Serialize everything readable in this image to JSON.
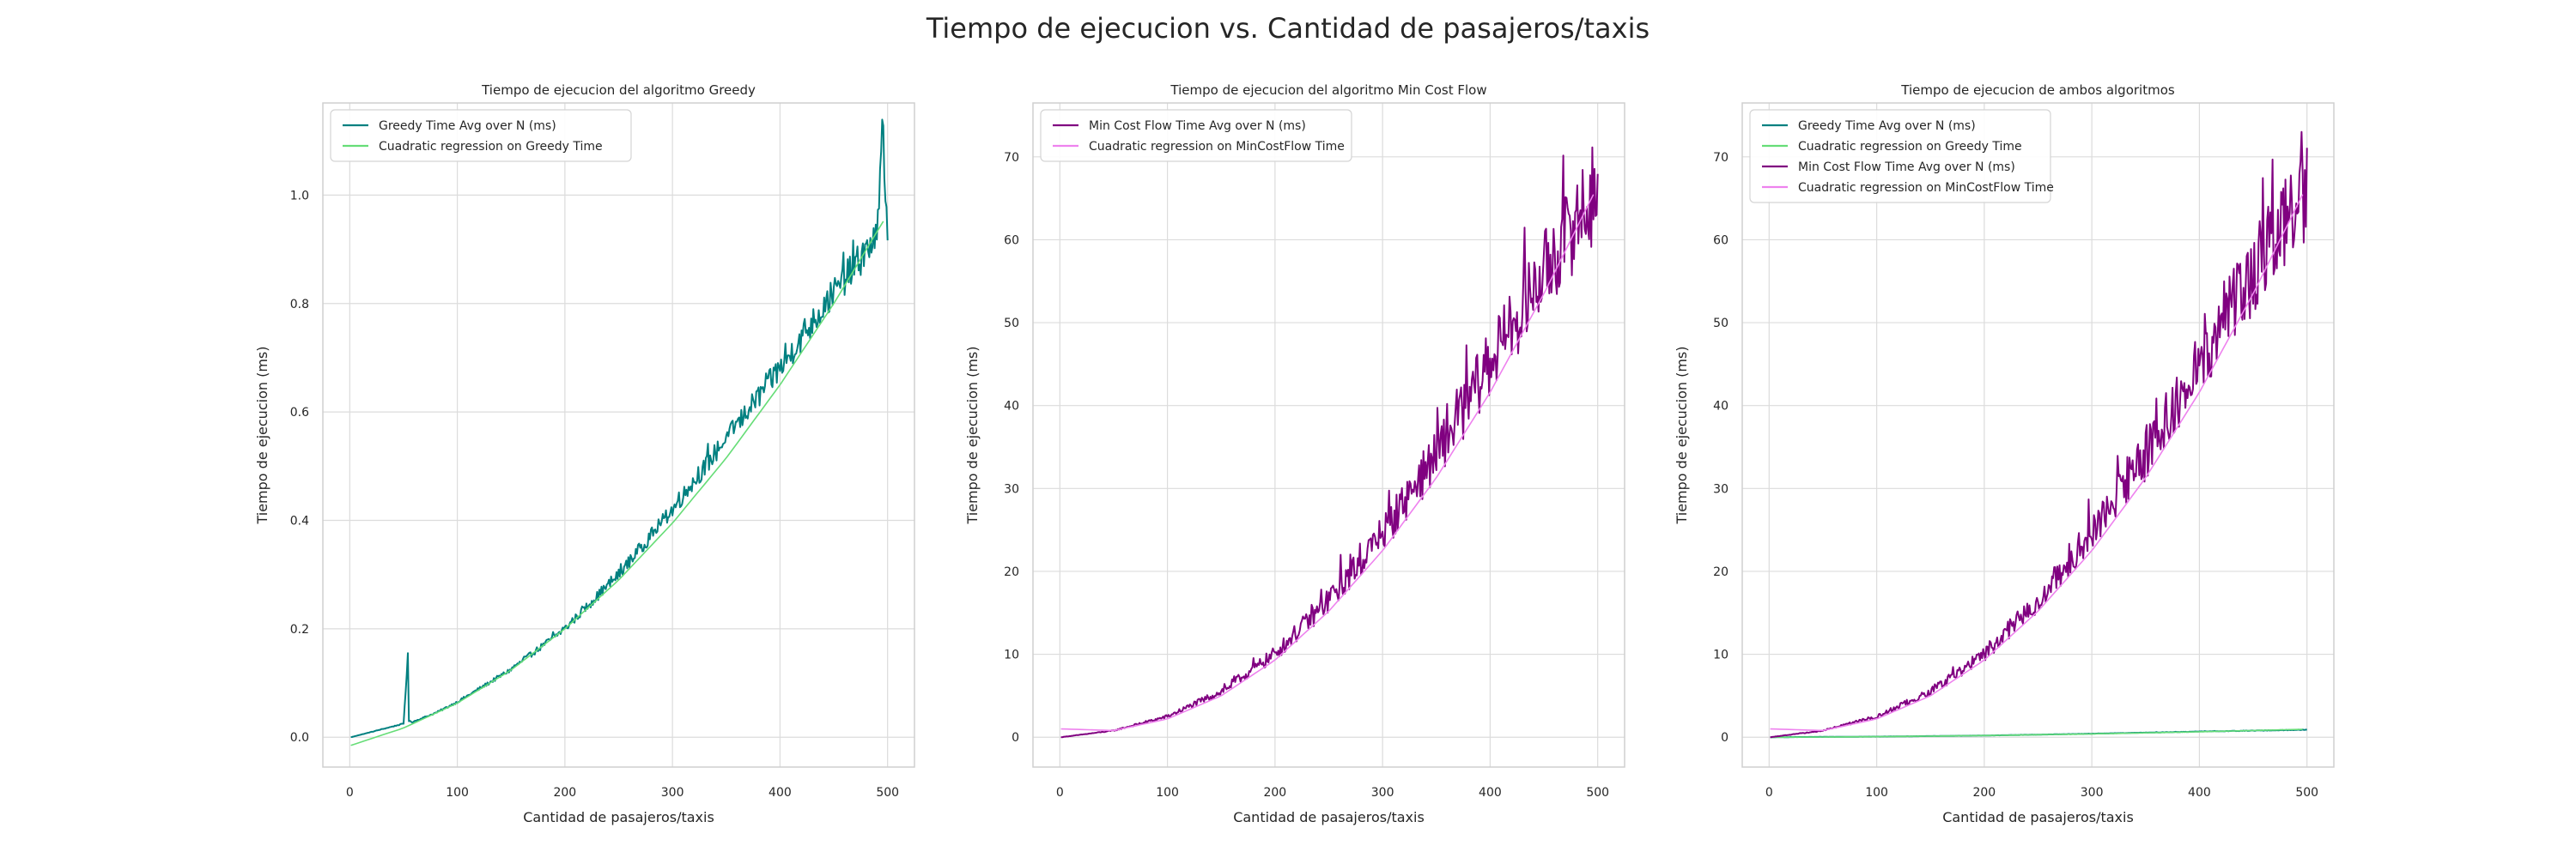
{
  "figure": {
    "suptitle": "Tiempo de ejecucion vs. Cantidad de pasajeros/taxis"
  },
  "chart_data": [
    {
      "type": "line",
      "title": "Tiempo de ejecucion del algoritmo Greedy",
      "xlabel": "Cantidad de pasajeros/taxis",
      "ylabel": "Tiempo de ejecucion (ms)",
      "xlim": [
        -25,
        525
      ],
      "ylim": [
        -0.055,
        1.17
      ],
      "xticks": [
        0,
        100,
        200,
        300,
        400,
        500
      ],
      "xtick_labels": [
        "0",
        "100",
        "200",
        "300",
        "400",
        "500"
      ],
      "yticks": [
        0.0,
        0.2,
        0.4,
        0.6,
        0.8,
        1.0
      ],
      "ytick_labels": [
        "0.0",
        "0.2",
        "0.4",
        "0.6",
        "0.8",
        "1.0"
      ],
      "grid": true,
      "legend_position": "upper-left",
      "series": [
        {
          "name": "Greedy Time Avg over N (ms)",
          "color": "#008080",
          "style": "noisy",
          "x": [
            1,
            50,
            54,
            55,
            58,
            80,
            100,
            150,
            200,
            250,
            300,
            350,
            400,
            450,
            490,
            496,
            500
          ],
          "y": [
            0.0,
            0.025,
            0.15,
            0.03,
            0.028,
            0.045,
            0.065,
            0.125,
            0.2,
            0.3,
            0.42,
            0.55,
            0.68,
            0.82,
            0.92,
            1.12,
            0.9
          ]
        },
        {
          "name": "Cuadratic regression on Greedy Time",
          "color": "#66dd77",
          "style": "smooth",
          "x": [
            1,
            50,
            100,
            150,
            200,
            250,
            300,
            350,
            400,
            450,
            500
          ],
          "y": [
            -0.015,
            0.017,
            0.063,
            0.124,
            0.2,
            0.29,
            0.395,
            0.515,
            0.65,
            0.8,
            0.965
          ]
        }
      ]
    },
    {
      "type": "line",
      "title": "Tiempo de ejecucion del algoritmo Min Cost Flow",
      "xlabel": "Cantidad de pasajeros/taxis",
      "ylabel": "Tiempo de ejecucion (ms)",
      "xlim": [
        -25,
        525
      ],
      "ylim": [
        -3.6,
        76.5
      ],
      "xticks": [
        0,
        100,
        200,
        300,
        400,
        500
      ],
      "xtick_labels": [
        "0",
        "100",
        "200",
        "300",
        "400",
        "500"
      ],
      "yticks": [
        0,
        10,
        20,
        30,
        40,
        50,
        60,
        70
      ],
      "ytick_labels": [
        "0",
        "10",
        "20",
        "30",
        "40",
        "50",
        "60",
        "70"
      ],
      "grid": true,
      "legend_position": "upper-left",
      "series": [
        {
          "name": "Min Cost Flow Time Avg over N (ms)",
          "color": "#800080",
          "style": "noisy",
          "x": [
            1,
            50,
            100,
            150,
            200,
            250,
            300,
            350,
            400,
            450,
            480,
            500
          ],
          "y": [
            0.0,
            0.8,
            2.5,
            5.5,
            10.0,
            16.5,
            24.5,
            34.0,
            45.0,
            56.0,
            62.0,
            66.0
          ]
        },
        {
          "name": "Cuadratic regression on MinCostFlow Time",
          "color": "#ee82ee",
          "style": "smooth",
          "x": [
            1,
            50,
            100,
            150,
            200,
            250,
            300,
            350,
            400,
            450,
            500
          ],
          "y": [
            1.0,
            0.8,
            2.2,
            5.0,
            9.3,
            15.2,
            22.5,
            31.3,
            41.6,
            53.5,
            66.5
          ]
        }
      ]
    },
    {
      "type": "line",
      "title": "Tiempo de ejecucion de ambos algoritmos",
      "xlabel": "Cantidad de pasajeros/taxis",
      "ylabel": "Tiempo de ejecucion (ms)",
      "xlim": [
        -25,
        525
      ],
      "ylim": [
        -3.6,
        76.5
      ],
      "xticks": [
        0,
        100,
        200,
        300,
        400,
        500
      ],
      "xtick_labels": [
        "0",
        "100",
        "200",
        "300",
        "400",
        "500"
      ],
      "yticks": [
        0,
        10,
        20,
        30,
        40,
        50,
        60,
        70
      ],
      "ytick_labels": [
        "0",
        "10",
        "20",
        "30",
        "40",
        "50",
        "60",
        "70"
      ],
      "grid": true,
      "legend_position": "upper-left",
      "series": [
        {
          "name": "Greedy Time Avg over N (ms)",
          "color": "#008080",
          "style": "noisy",
          "x": [
            1,
            100,
            200,
            300,
            400,
            500
          ],
          "y": [
            0.0,
            0.07,
            0.2,
            0.42,
            0.68,
            0.9
          ]
        },
        {
          "name": "Cuadratic regression on Greedy Time",
          "color": "#66dd77",
          "style": "smooth",
          "x": [
            1,
            100,
            200,
            300,
            400,
            500
          ],
          "y": [
            -0.015,
            0.063,
            0.2,
            0.395,
            0.65,
            0.965
          ]
        },
        {
          "name": "Min Cost Flow Time Avg over N (ms)",
          "color": "#800080",
          "style": "noisy",
          "x": [
            1,
            50,
            100,
            150,
            200,
            250,
            300,
            350,
            400,
            450,
            480,
            500
          ],
          "y": [
            0.0,
            0.8,
            2.5,
            5.5,
            10.0,
            16.5,
            24.5,
            34.0,
            45.0,
            56.0,
            62.0,
            66.0
          ]
        },
        {
          "name": "Cuadratic regression on MinCostFlow Time",
          "color": "#ee82ee",
          "style": "smooth",
          "x": [
            1,
            50,
            100,
            150,
            200,
            250,
            300,
            350,
            400,
            450,
            500
          ],
          "y": [
            1.0,
            0.8,
            2.2,
            5.0,
            9.3,
            15.2,
            22.5,
            31.3,
            41.6,
            53.5,
            66.5
          ]
        }
      ]
    }
  ]
}
